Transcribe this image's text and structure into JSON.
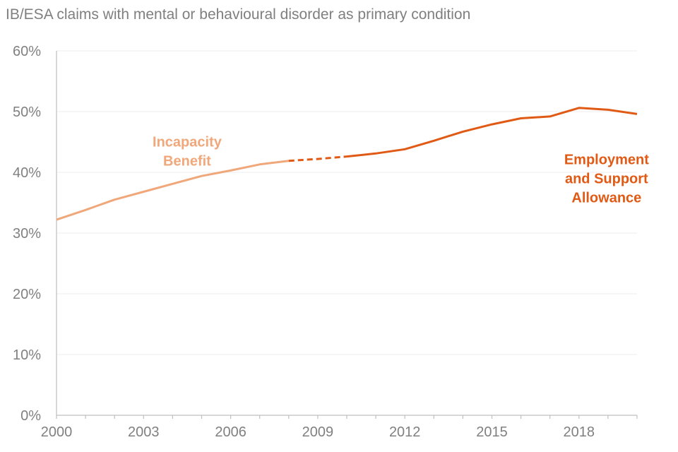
{
  "chart_data": {
    "type": "line",
    "title": "IB/ESA claims with mental or behavioural disorder as primary condition",
    "xlabel": "",
    "ylabel": "",
    "xlim": [
      2000,
      2020
    ],
    "ylim": [
      0,
      60
    ],
    "x_ticks": [
      2000,
      2003,
      2006,
      2009,
      2012,
      2015,
      2018
    ],
    "x_tick_labels": [
      "2000",
      "2003",
      "2006",
      "2009",
      "2012",
      "2015",
      "2018"
    ],
    "y_ticks": [
      0,
      10,
      20,
      30,
      40,
      50,
      60
    ],
    "y_tick_labels": [
      "0%",
      "10%",
      "20%",
      "30%",
      "40%",
      "50%",
      "60%"
    ],
    "grid": true,
    "legend": "none",
    "colors": {
      "ib": "#f0a77a",
      "esa": "#e05a15",
      "axis": "#bfbfbf",
      "grid": "#eeeeee",
      "text": "#808080"
    },
    "series": [
      {
        "name": "Incapacity Benefit",
        "label_lines": [
          "Incapacity",
          "Benefit"
        ],
        "label_anchor": [
          2004.5,
          43.5
        ],
        "style": "solid",
        "x": [
          2000,
          2001,
          2002,
          2003,
          2004,
          2005,
          2006,
          2007,
          2008
        ],
        "values": [
          32.2,
          33.8,
          35.5,
          36.8,
          38.1,
          39.4,
          40.3,
          41.3,
          41.9
        ]
      },
      {
        "name": "",
        "style": "dashed",
        "x": [
          2008,
          2009,
          2010
        ],
        "values": [
          41.9,
          42.2,
          42.6
        ]
      },
      {
        "name": "Employment and Support Allowance",
        "label_lines": [
          "Employment",
          "and Support",
          "Allowance"
        ],
        "label_anchor": [
          2018.95,
          39.0
        ],
        "style": "solid",
        "x": [
          2010,
          2011,
          2012,
          2013,
          2014,
          2015,
          2016,
          2017,
          2018,
          2019,
          2020
        ],
        "values": [
          42.6,
          43.1,
          43.8,
          45.2,
          46.7,
          47.9,
          48.9,
          49.2,
          50.6,
          50.3,
          49.6
        ]
      }
    ]
  }
}
